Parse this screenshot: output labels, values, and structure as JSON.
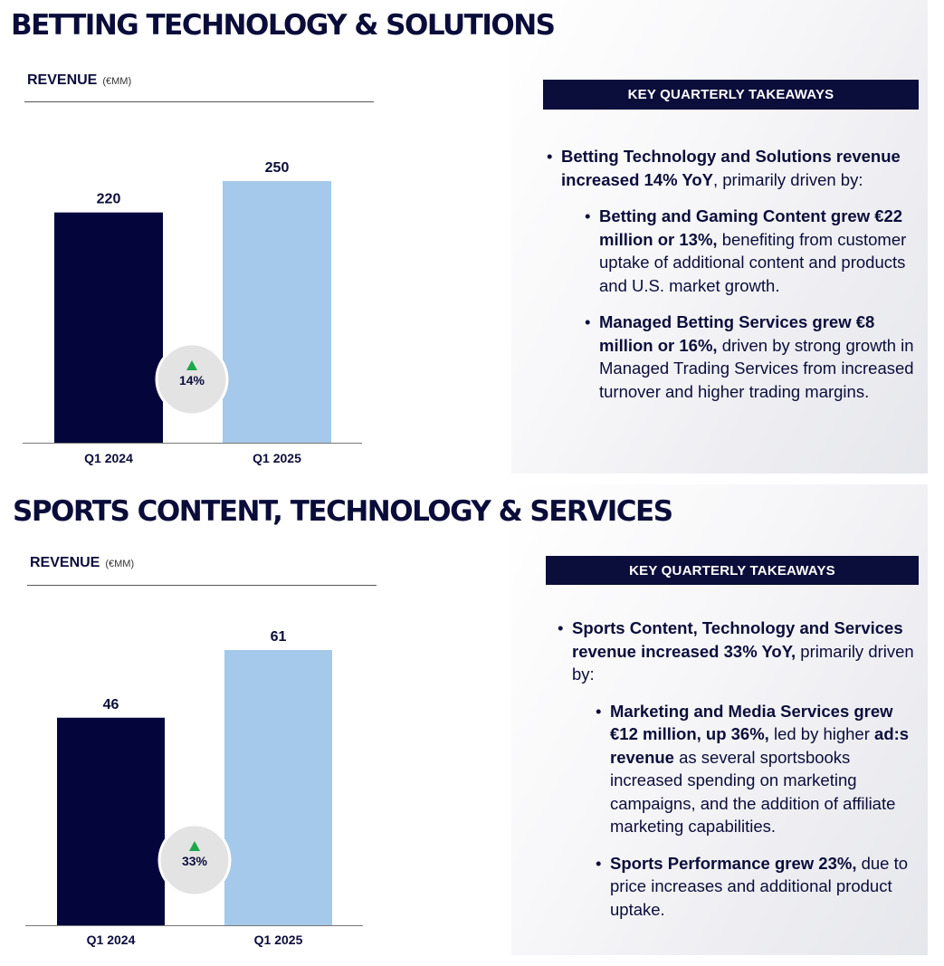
{
  "sections": [
    {
      "title": "BETTING TECHNOLOGY & SOLUTIONS",
      "revenue_label": "REVENUE",
      "revenue_unit": "(€MM)",
      "takeaways_title": "KEY QUARTERLY TAKEAWAYS",
      "bullets": [
        {
          "bold": "Betting Technology and Solutions revenue increased 14% YoY",
          "text": ", primarily driven by:"
        },
        {
          "bold": "Betting and Gaming Content grew €22 million or 13%,",
          "text": " benefiting from customer uptake of additional content and products and U.S. market growth."
        },
        {
          "bold": "Managed Betting Services grew €8 million or 16%,",
          "text": " driven by strong growth in Managed Trading Services from increased turnover and higher trading margins."
        }
      ]
    },
    {
      "title": "SPORTS CONTENT, TECHNOLOGY & SERVICES",
      "revenue_label": "REVENUE",
      "revenue_unit": "(€MM)",
      "takeaways_title": "KEY QUARTERLY TAKEAWAYS",
      "bullets": [
        {
          "bold": "Sports Content, Technology and Services revenue increased 33% YoY,",
          "text": " primarily driven by:"
        },
        {
          "bold": "Marketing and Media Services grew €12 million, up 36%,",
          "text": " led by higher ",
          "bold2": "ad:s revenue",
          "text2": " as several sportsbooks increased spending on marketing campaigns, and the addition of affiliate marketing capabilities."
        },
        {
          "bold": "Sports Performance grew 23%,",
          "text": " due to price increases and additional product uptake."
        }
      ]
    }
  ],
  "chart_data": [
    {
      "type": "bar",
      "categories": [
        "Q1 2024",
        "Q1 2025"
      ],
      "values": [
        220,
        250
      ],
      "ylim": [
        0,
        250
      ],
      "colors": [
        "#04053a",
        "#a4c9ea"
      ],
      "growth_badge": "14%",
      "growth_icon": "up-triangle-icon",
      "growth_color": "#1aa84a"
    },
    {
      "type": "bar",
      "categories": [
        "Q1 2024",
        "Q1 2025"
      ],
      "values": [
        46,
        61
      ],
      "ylim": [
        0,
        61
      ],
      "colors": [
        "#04053a",
        "#a4c9ea"
      ],
      "growth_badge": "33%",
      "growth_icon": "up-triangle-icon",
      "growth_color": "#1aa84a"
    }
  ]
}
